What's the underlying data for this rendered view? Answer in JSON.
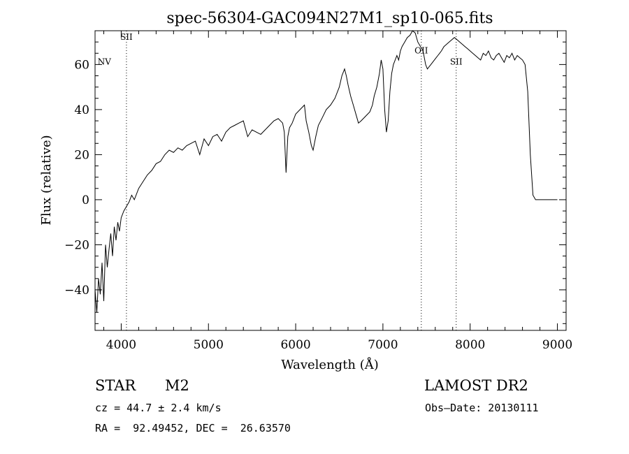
{
  "chart_data": {
    "type": "line",
    "title": "spec-56304-GAC094N27M1_sp10-065.fits",
    "xlabel": "Wavelength (Å)",
    "ylabel": "Flux (relative)",
    "xlim": [
      3700,
      9100
    ],
    "ylim": [
      -58,
      75
    ],
    "x_ticks": [
      4000,
      5000,
      6000,
      7000,
      8000,
      9000
    ],
    "x_tick_labels": [
      "4000",
      "5000",
      "6000",
      "7000",
      "8000",
      "9000"
    ],
    "y_ticks": [
      -40,
      -20,
      0,
      20,
      40,
      60
    ],
    "y_tick_labels": [
      "−40",
      "−20",
      "0",
      "20",
      "40",
      "60"
    ],
    "grid": false,
    "legend": "none",
    "line_color": "#000000",
    "lines": [
      {
        "x": 4060,
        "label": "SII",
        "label_y": 71
      },
      {
        "x": 7440,
        "label": "OII",
        "label_y": 65
      },
      {
        "x": 7840,
        "label": "SII",
        "label_y": 60
      }
    ],
    "annotations": [
      {
        "x": 3730,
        "y": 60,
        "text": "NV"
      }
    ],
    "series": [
      {
        "x": [
          3700,
          3720,
          3740,
          3760,
          3780,
          3800,
          3820,
          3840,
          3860,
          3880,
          3900,
          3920,
          3940,
          3960,
          3980,
          4000,
          4030,
          4060,
          4090,
          4120,
          4150,
          4200,
          4250,
          4300,
          4350,
          4400,
          4450,
          4500,
          4550,
          4600,
          4650,
          4700,
          4750,
          4800,
          4850,
          4900,
          4950,
          5000,
          5050,
          5100,
          5150,
          5200,
          5250,
          5300,
          5350,
          5400,
          5450,
          5500,
          5550,
          5600,
          5650,
          5700,
          5750,
          5800,
          5850,
          5870,
          5890,
          5910,
          5930,
          5960,
          6000,
          6050,
          6100,
          6120,
          6150,
          6180,
          6200,
          6230,
          6260,
          6300,
          6350,
          6400,
          6450,
          6500,
          6530,
          6560,
          6580,
          6600,
          6630,
          6660,
          6690,
          6720,
          6750,
          6800,
          6850,
          6880,
          6900,
          6930,
          6960,
          6980,
          7000,
          7020,
          7040,
          7060,
          7080,
          7100,
          7120,
          7140,
          7160,
          7180,
          7200,
          7220,
          7250,
          7280,
          7310,
          7340,
          7370,
          7400,
          7430,
          7460,
          7490,
          7510,
          7530,
          7550,
          7570,
          7590,
          7610,
          7630,
          7650,
          7670,
          7700,
          7730,
          7760,
          7790,
          7820,
          7850,
          7880,
          7910,
          7940,
          7970,
          8000,
          8030,
          8060,
          8090,
          8120,
          8150,
          8180,
          8210,
          8240,
          8270,
          8300,
          8330,
          8360,
          8390,
          8420,
          8450,
          8480,
          8510,
          8540,
          8570,
          8600,
          8630,
          8660,
          8690,
          8720,
          8750,
          8780,
          8810,
          8840,
          8870,
          8900,
          8930,
          8960,
          8980,
          8990,
          9000
        ],
        "y": [
          -40,
          -50,
          -35,
          -42,
          -28,
          -45,
          -20,
          -30,
          -22,
          -15,
          -25,
          -12,
          -18,
          -10,
          -14,
          -8,
          -5,
          -3,
          -1,
          2,
          0,
          5,
          8,
          11,
          13,
          16,
          17,
          20,
          22,
          21,
          23,
          22,
          24,
          25,
          26,
          20,
          27,
          24,
          28,
          29,
          26,
          30,
          32,
          33,
          34,
          35,
          28,
          31,
          30,
          29,
          31,
          33,
          35,
          36,
          34,
          30,
          12,
          28,
          32,
          34,
          38,
          40,
          42,
          35,
          30,
          24,
          22,
          28,
          33,
          36,
          40,
          42,
          45,
          50,
          55,
          58,
          55,
          51,
          46,
          42,
          38,
          34,
          35,
          37,
          39,
          42,
          46,
          50,
          56,
          62,
          58,
          40,
          30,
          35,
          48,
          56,
          60,
          62,
          64,
          62,
          66,
          68,
          70,
          72,
          73,
          75,
          74,
          70,
          68,
          66,
          60,
          58,
          59,
          60,
          61,
          62,
          63,
          64,
          65,
          66,
          68,
          69,
          70,
          71,
          72,
          71,
          70,
          69,
          68,
          67,
          66,
          65,
          64,
          63,
          62,
          65,
          64,
          66,
          63,
          62,
          64,
          65,
          63,
          61,
          64,
          63,
          65,
          62,
          64,
          63,
          62,
          60,
          48,
          20,
          2,
          0,
          0,
          0,
          0,
          0,
          0,
          0,
          0,
          0,
          0,
          0
        ]
      }
    ]
  },
  "info": {
    "object_class": "STAR",
    "subclass": "M2",
    "survey": "LAMOST DR2",
    "redshift": "cz = 44.7 ± 2.4 km/s",
    "obs_date": "Obs–Date: 20130111",
    "coords": "RA =  92.49452, DEC =  26.63570"
  }
}
